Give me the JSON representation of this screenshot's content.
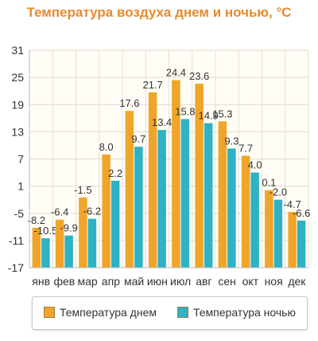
{
  "colors": {
    "day": "#f0a52a",
    "night": "#2eb2c4",
    "title": "#e8892a"
  },
  "chart_data": {
    "type": "bar",
    "title": "Температура воздуха днем и ночью, °C",
    "categories": [
      "янв",
      "фев",
      "мар",
      "апр",
      "май",
      "июн",
      "июл",
      "авг",
      "сен",
      "окт",
      "ноя",
      "дек"
    ],
    "series": [
      {
        "name": "Температура днем",
        "values": [
          -8.2,
          -6.4,
          -1.5,
          8.0,
          17.6,
          21.7,
          24.4,
          23.6,
          15.3,
          7.7,
          0.1,
          -4.7
        ]
      },
      {
        "name": "Температура ночью",
        "values": [
          -10.5,
          -9.9,
          -6.2,
          2.2,
          9.7,
          13.4,
          15.8,
          14.9,
          9.3,
          4.0,
          -2.0,
          -6.6
        ]
      }
    ],
    "value_labels_day": [
      "-8.2",
      "-6.4",
      "-1.5",
      "8.0",
      "17.6",
      "21.7",
      "24.4",
      "23.6",
      "15.3",
      "7.7",
      "0.1",
      "-4.7"
    ],
    "value_labels_night": [
      "-10.5",
      "-9.9",
      "-6.2",
      "2.2",
      "9.7",
      "13.4",
      "15.8",
      "14.9",
      "9.3",
      "4.0",
      "-2.0",
      "-6.6"
    ],
    "yticks": [
      31,
      25,
      19,
      13,
      7,
      1,
      -5,
      -11,
      -17
    ],
    "ylim": [
      -17,
      31
    ],
    "grid": true,
    "legend_position": "bottom"
  }
}
